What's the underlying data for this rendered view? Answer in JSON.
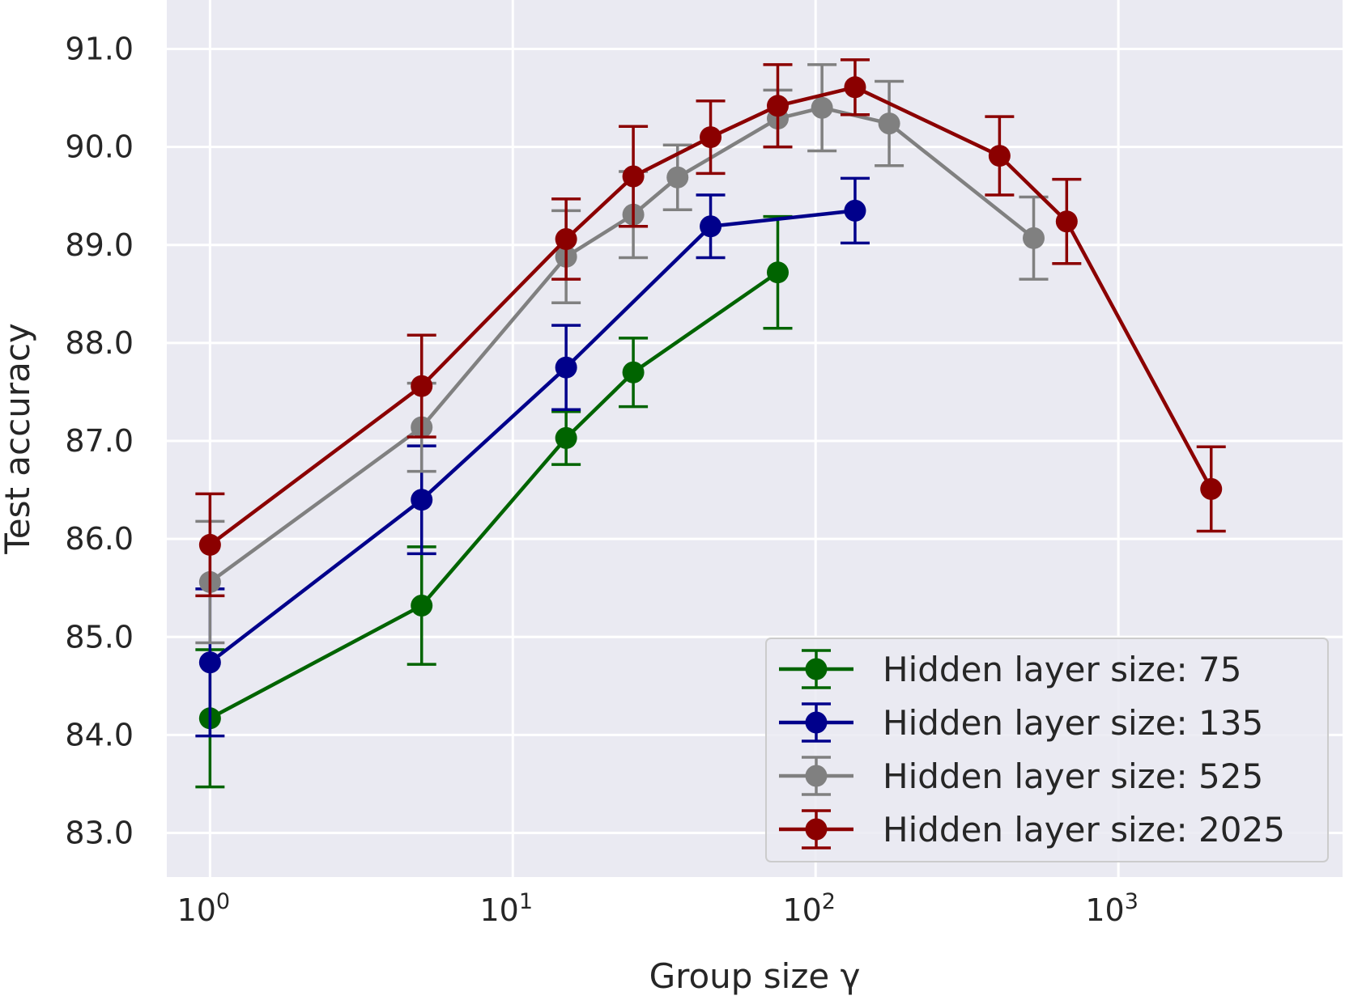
{
  "chart_data": {
    "type": "line",
    "xscale": "log",
    "title": "",
    "xlabel": "Group size γ",
    "ylabel": "Test accuracy",
    "xlim": [
      0.72,
      5500
    ],
    "ylim": [
      82.55,
      91.5
    ],
    "yticks": [
      83.0,
      84.0,
      85.0,
      86.0,
      87.0,
      88.0,
      89.0,
      90.0,
      91.0
    ],
    "ytick_labels": [
      "83.0",
      "84.0",
      "85.0",
      "86.0",
      "87.0",
      "88.0",
      "89.0",
      "90.0",
      "91.0"
    ],
    "xticks": [
      {
        "value": 1,
        "base": "10",
        "exp": "0"
      },
      {
        "value": 10,
        "base": "10",
        "exp": "1"
      },
      {
        "value": 100,
        "base": "10",
        "exp": "2"
      },
      {
        "value": 1000,
        "base": "10",
        "exp": "3"
      }
    ],
    "grid": true,
    "legend_position": "lower-right",
    "series": [
      {
        "name": "Hidden layer size: 75",
        "color": "#006400",
        "points": [
          {
            "x": 1,
            "y": 84.17,
            "err": 0.7
          },
          {
            "x": 5,
            "y": 85.32,
            "err": 0.6
          },
          {
            "x": 15,
            "y": 87.03,
            "err": 0.27
          },
          {
            "x": 25,
            "y": 87.7,
            "err": 0.35
          },
          {
            "x": 75,
            "y": 88.72,
            "err": 0.57
          }
        ]
      },
      {
        "name": "Hidden layer size: 135",
        "color": "#00008b",
        "points": [
          {
            "x": 1,
            "y": 84.74,
            "err": 0.75
          },
          {
            "x": 5,
            "y": 86.4,
            "err": 0.55
          },
          {
            "x": 15,
            "y": 87.75,
            "err": 0.43
          },
          {
            "x": 45,
            "y": 89.19,
            "err": 0.32
          },
          {
            "x": 135,
            "y": 89.35,
            "err": 0.33
          }
        ]
      },
      {
        "name": "Hidden layer size: 525",
        "color": "#808080",
        "points": [
          {
            "x": 1,
            "y": 85.56,
            "err": 0.62
          },
          {
            "x": 5,
            "y": 87.14,
            "err": 0.45
          },
          {
            "x": 15,
            "y": 88.88,
            "err": 0.47
          },
          {
            "x": 25,
            "y": 89.31,
            "err": 0.44
          },
          {
            "x": 35,
            "y": 89.69,
            "err": 0.33
          },
          {
            "x": 75,
            "y": 90.29,
            "err": 0.29
          },
          {
            "x": 105,
            "y": 90.4,
            "err": 0.44
          },
          {
            "x": 175,
            "y": 90.24,
            "err": 0.43
          },
          {
            "x": 525,
            "y": 89.07,
            "err": 0.42
          }
        ]
      },
      {
        "name": "Hidden layer size: 2025",
        "color": "#8b0000",
        "points": [
          {
            "x": 1,
            "y": 85.94,
            "err": 0.52
          },
          {
            "x": 5,
            "y": 87.56,
            "err": 0.52
          },
          {
            "x": 15,
            "y": 89.06,
            "err": 0.41
          },
          {
            "x": 25,
            "y": 89.7,
            "err": 0.51
          },
          {
            "x": 45,
            "y": 90.1,
            "err": 0.37
          },
          {
            "x": 75,
            "y": 90.42,
            "err": 0.42
          },
          {
            "x": 135,
            "y": 90.61,
            "err": 0.28
          },
          {
            "x": 405,
            "y": 89.91,
            "err": 0.4
          },
          {
            "x": 675,
            "y": 89.24,
            "err": 0.43
          },
          {
            "x": 2025,
            "y": 86.51,
            "err": 0.43
          }
        ]
      }
    ]
  }
}
